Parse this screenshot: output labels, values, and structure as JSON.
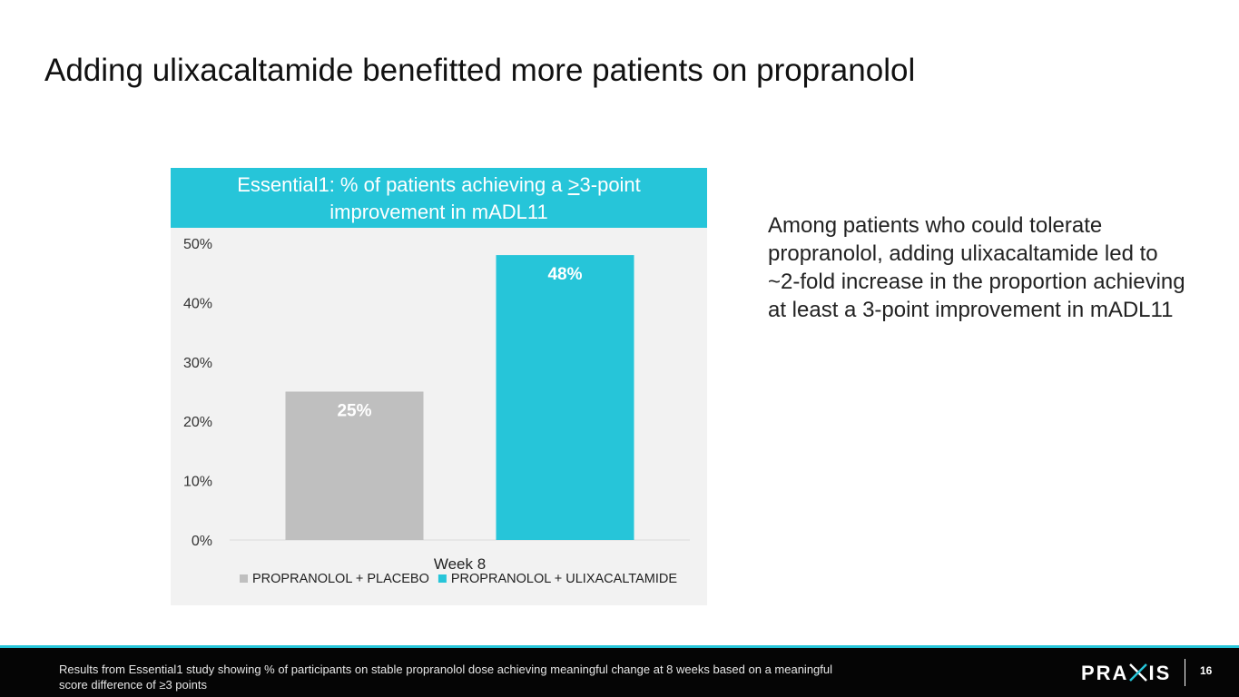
{
  "slide": {
    "title": "Adding ulixacaltamide benefitted more patients on propranolol",
    "side_text": "Among patients who could tolerate propranolol, adding ulixacaltamide led to ~2-fold increase in the proportion achieving at least a 3-point improvement in mADL11",
    "footnote": "Results from Essential1 study showing % of participants on stable propranolol dose achieving meaningful change at 8 weeks based on a meaningful score difference of ≥3 points",
    "logo": {
      "left": "PRA",
      "right": "IS"
    },
    "page_number": "16"
  },
  "chart_data": {
    "type": "bar",
    "title_line1_pre": "Essential1: % of patients achieving a ",
    "title_line1_ul": ">",
    "title_line1_post": "3-point",
    "title_line2": "improvement in mADL11",
    "categories": [
      "Week 8"
    ],
    "series": [
      {
        "name": "PROPRANOLOL + PLACEBO",
        "values": [
          25
        ],
        "label": "25%",
        "color": "#bfbfbf"
      },
      {
        "name": "PROPRANOLOL + ULIXACALTAMIDE",
        "values": [
          48
        ],
        "label": "48%",
        "color": "#26c5d9"
      }
    ],
    "ylim": [
      0,
      50
    ],
    "yticks": [
      0,
      10,
      20,
      30,
      40,
      50
    ],
    "ytick_labels": [
      "0%",
      "10%",
      "20%",
      "30%",
      "40%",
      "50%"
    ],
    "xlabel": "",
    "ylabel": "",
    "grid": false,
    "legend_position": "bottom"
  }
}
